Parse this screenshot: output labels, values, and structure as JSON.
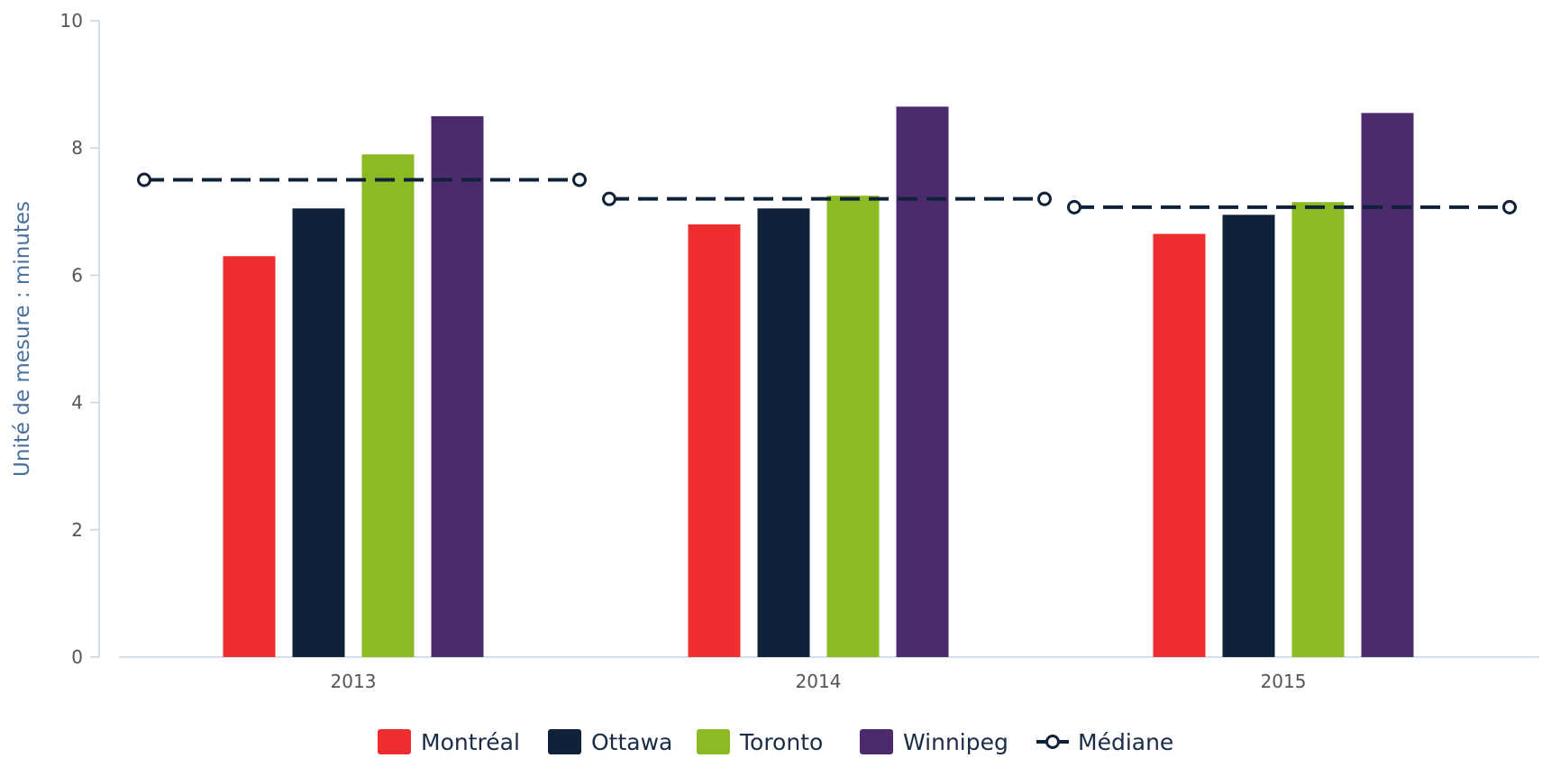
{
  "chart_data": {
    "type": "bar",
    "categories": [
      "2013",
      "2014",
      "2015"
    ],
    "ylabel": "Unité de mesure : minutes",
    "ylim": [
      0,
      10
    ],
    "yticks": [
      0,
      2,
      4,
      6,
      8,
      10
    ],
    "series": [
      {
        "name": "Montréal",
        "color": "#ee2d2f",
        "values": [
          6.3,
          6.8,
          6.65
        ]
      },
      {
        "name": "Ottawa",
        "color": "#0f2239",
        "values": [
          7.05,
          7.05,
          6.95
        ]
      },
      {
        "name": "Toronto",
        "color": "#8cba23",
        "values": [
          7.9,
          7.25,
          7.15
        ]
      },
      {
        "name": "Winnipeg",
        "color": "#4b2a6e",
        "values": [
          8.5,
          8.65,
          8.55
        ]
      }
    ],
    "median": {
      "name": "Médiane",
      "color": "#0f2239",
      "style": "dashed",
      "values": [
        7.5,
        7.2,
        7.07
      ]
    },
    "legend_position": "bottom-center",
    "grid": false
  }
}
